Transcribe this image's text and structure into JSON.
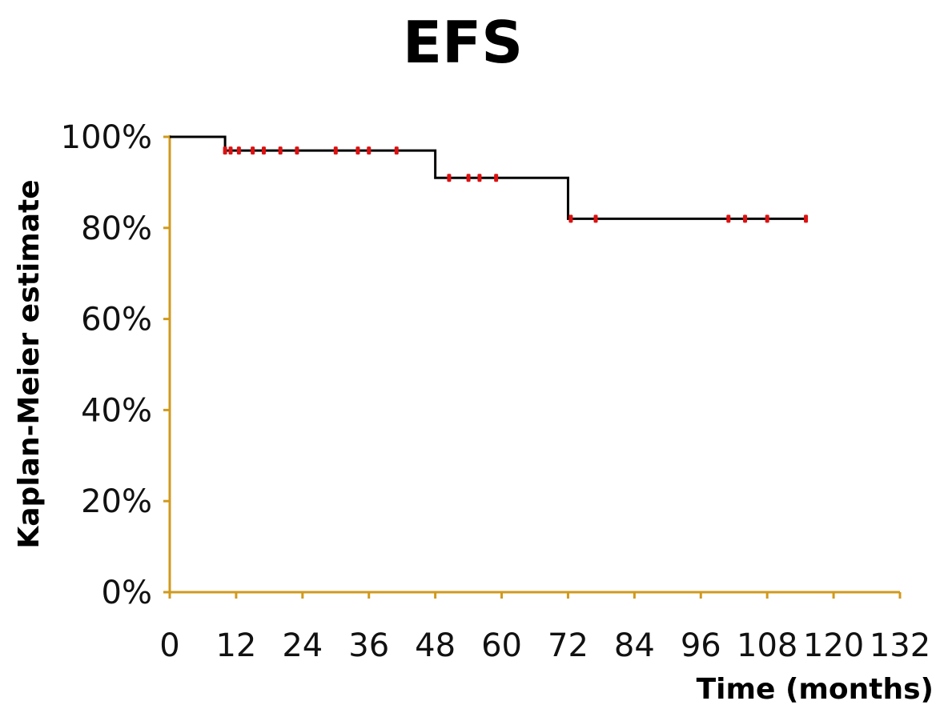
{
  "chart_data": {
    "type": "line",
    "title": "EFS",
    "xlabel": "Time (months)",
    "ylabel": "Kaplan-Meier estimate",
    "x_ticks": [
      "0",
      "12",
      "24",
      "36",
      "48",
      "60",
      "72",
      "84",
      "96",
      "108",
      "120",
      "132"
    ],
    "y_ticks": [
      "0%",
      "20%",
      "40%",
      "60%",
      "80%",
      "100%"
    ],
    "xlim": [
      0,
      132
    ],
    "ylim": [
      0,
      100
    ],
    "grid": false,
    "series": [
      {
        "step": true,
        "color": "#000000",
        "x": [
          0,
          10,
          48,
          72,
          115
        ],
        "y": [
          100,
          97,
          91,
          82,
          82
        ]
      }
    ],
    "censored": {
      "color": "#dd1111",
      "x": [
        10,
        11,
        12.5,
        15,
        17,
        20,
        23,
        30,
        34,
        36,
        41,
        50.5,
        54,
        56,
        59,
        72.5,
        77,
        101,
        104,
        108,
        115
      ],
      "y": [
        97,
        97,
        97,
        97,
        97,
        97,
        97,
        97,
        97,
        97,
        97,
        91,
        91,
        91,
        91,
        82,
        82,
        82,
        82,
        82,
        82
      ]
    },
    "colors": {
      "axis": "#d09a1c",
      "curve": "#000000",
      "censor": "#dd1111"
    }
  }
}
